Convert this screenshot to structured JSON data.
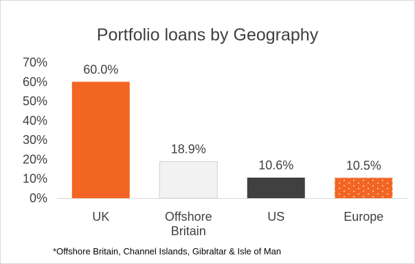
{
  "chart_data": {
    "type": "bar",
    "title": "Portfolio loans by Geography",
    "categories": [
      [
        "UK"
      ],
      [
        "Offshore",
        "Britain"
      ],
      [
        "US"
      ],
      [
        "Europe"
      ]
    ],
    "values": [
      60.0,
      18.9,
      10.6,
      10.5
    ],
    "data_labels": [
      "60.0%",
      "18.9%",
      "10.6%",
      "10.5%"
    ],
    "ylim": [
      0,
      70
    ],
    "yticks": [
      0,
      10,
      20,
      30,
      40,
      50,
      60,
      70
    ],
    "ytick_labels": [
      "0%",
      "10%",
      "20%",
      "30%",
      "40%",
      "50%",
      "60%",
      "70%"
    ],
    "grid": false,
    "legend": "none",
    "bar_styles": [
      {
        "fill": "#f26522",
        "stroke": "none",
        "pattern": "solid"
      },
      {
        "fill": "#f2f2f2",
        "stroke": "#d0d0d0",
        "pattern": "solid"
      },
      {
        "fill": "#404040",
        "stroke": "none",
        "pattern": "solid"
      },
      {
        "fill": "#f26522",
        "stroke": "none",
        "pattern": "dots"
      }
    ],
    "footnote": "*Offshore Britain, Channel Islands, Gibraltar & Isle of Man"
  }
}
